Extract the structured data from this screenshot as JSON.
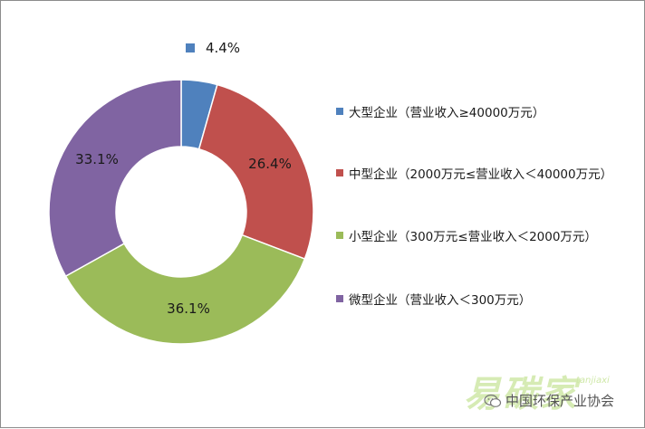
{
  "chart_data": {
    "type": "pie",
    "donut": true,
    "series": [
      {
        "name": "大型企业（营业收入≥40000万元）",
        "value": 4.4,
        "label": "4.4%",
        "color": "#4f81bd"
      },
      {
        "name": "中型企业（2000万元≤营业收入＜40000万元）",
        "value": 26.4,
        "label": "26.4%",
        "color": "#c0504d"
      },
      {
        "name": "小型企业（300万元≤营业收入＜2000万元）",
        "value": 36.1,
        "label": "36.1%",
        "color": "#9bbb59"
      },
      {
        "name": "微型企业（营业收入＜300万元）",
        "value": 33.1,
        "label": "33.1%",
        "color": "#8064a2"
      }
    ],
    "legend_position": "right"
  },
  "watermark": {
    "logo_text": "易碳家",
    "logo_sub": "tanjiaxi",
    "source_text": "中国环保产业协会",
    "source_icon": "wechat-icon"
  }
}
